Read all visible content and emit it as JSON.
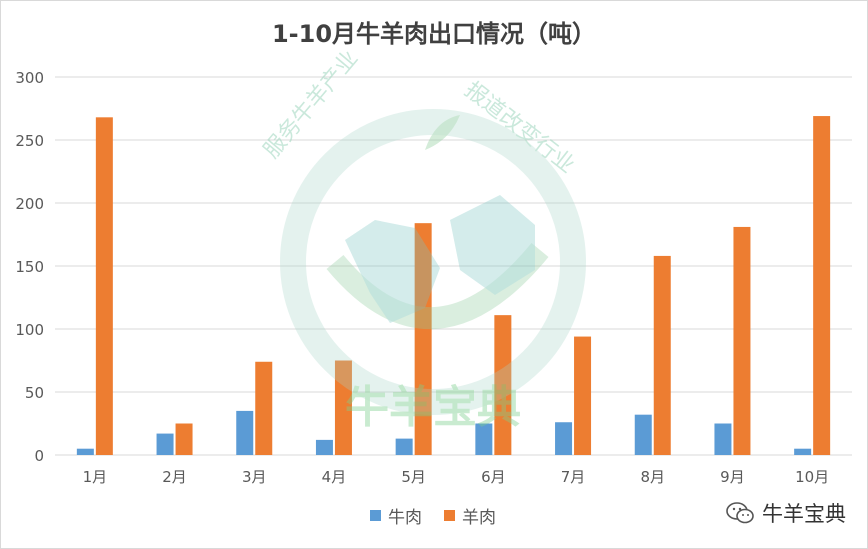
{
  "chart_data": {
    "type": "bar",
    "title": "1-10月牛羊肉出口情况（吨）",
    "categories": [
      "1月",
      "2月",
      "3月",
      "4月",
      "5月",
      "6月",
      "7月",
      "8月",
      "9月",
      "10月"
    ],
    "series": [
      {
        "name": "牛肉",
        "color": "#5b9bd5",
        "values": [
          5,
          17,
          35,
          12,
          13,
          25,
          26,
          32,
          25,
          5
        ]
      },
      {
        "name": "羊肉",
        "color": "#ed7d31",
        "values": [
          268,
          25,
          74,
          75,
          184,
          111,
          94,
          158,
          181,
          269
        ]
      }
    ],
    "ylim": [
      0,
      300
    ],
    "yticks": [
      0,
      50,
      100,
      150,
      200,
      250,
      300
    ],
    "grid": true,
    "legend_position": "bottom"
  },
  "watermark": {
    "arc_top": "服务牛羊产业",
    "arc_right": "报道改变行业",
    "logo_text": "牛羊宝典",
    "colors": {
      "green": "#43b06a",
      "teal": "#3fa3b5"
    }
  },
  "brand": {
    "icon": "wechat-icon",
    "name": "牛羊宝典"
  }
}
